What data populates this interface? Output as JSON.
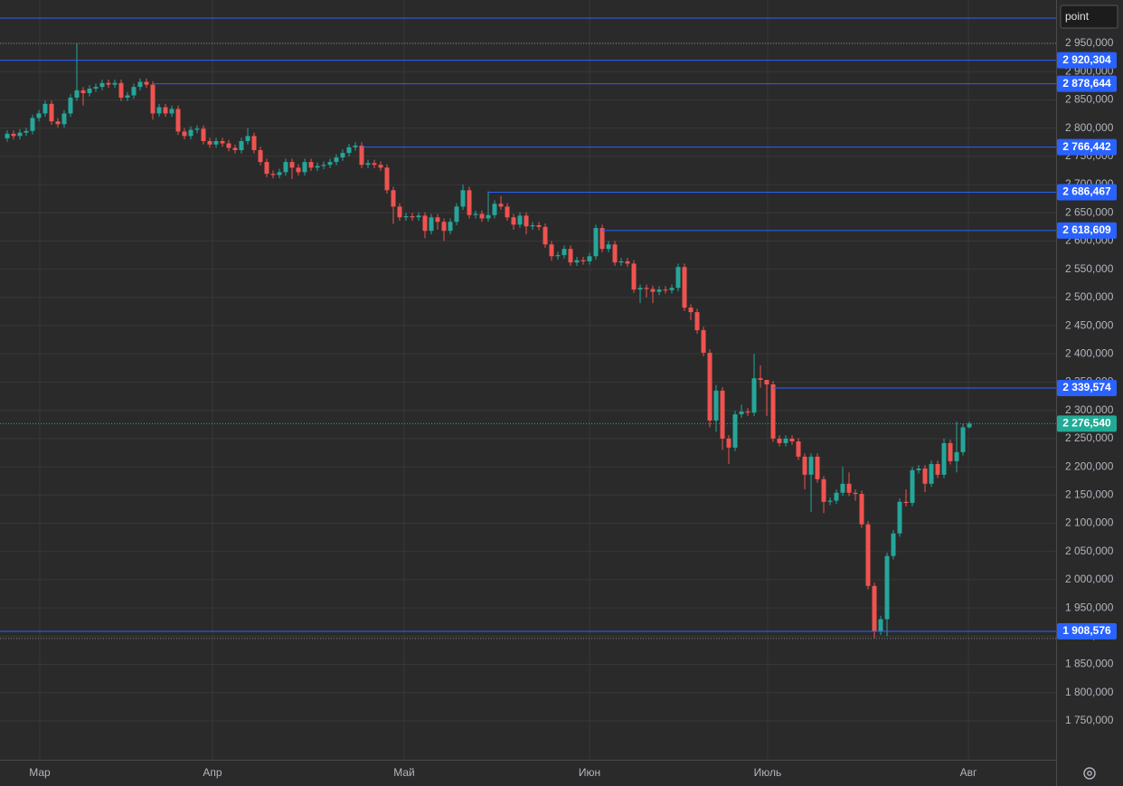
{
  "chart_data": {
    "type": "candlestick",
    "symbol": "point",
    "grid": true,
    "up_color": "#26a69a",
    "down_color": "#ef5350",
    "level_color": "#2962ff",
    "last_price_color": "#22ab94",
    "xlim": [
      -1.14,
      165.71
    ],
    "xticks": [
      {
        "value": 5.14,
        "label": "Мар"
      },
      {
        "value": 32.43,
        "label": "Апр"
      },
      {
        "value": 62.71,
        "label": "Май"
      },
      {
        "value": 92,
        "label": "Июн"
      },
      {
        "value": 120.14,
        "label": "Июль"
      },
      {
        "value": 151.86,
        "label": "Авг"
      }
    ],
    "ylim": [
      1681000,
      3027000
    ],
    "yticks": [
      {
        "value": 1750000,
        "label": "1 750,000"
      },
      {
        "value": 1800000,
        "label": "1 800,000"
      },
      {
        "value": 1850000,
        "label": "1 850,000"
      },
      {
        "value": 1900000,
        "label": "1 900,000"
      },
      {
        "value": 1950000,
        "label": "1 950,000"
      },
      {
        "value": 2000000,
        "label": "2 000,000"
      },
      {
        "value": 2050000,
        "label": "2 050,000"
      },
      {
        "value": 2100000,
        "label": "2 100,000"
      },
      {
        "value": 2150000,
        "label": "2 150,000"
      },
      {
        "value": 2200000,
        "label": "2 200,000"
      },
      {
        "value": 2250000,
        "label": "2 250,000"
      },
      {
        "value": 2300000,
        "label": "2 300,000"
      },
      {
        "value": 2350000,
        "label": "2 350,000"
      },
      {
        "value": 2400000,
        "label": "2 400,000"
      },
      {
        "value": 2450000,
        "label": "2 450,000"
      },
      {
        "value": 2500000,
        "label": "2 500,000"
      },
      {
        "value": 2550000,
        "label": "2 550,000"
      },
      {
        "value": 2600000,
        "label": "2 600,000"
      },
      {
        "value": 2650000,
        "label": "2 650,000"
      },
      {
        "value": 2700000,
        "label": "2 700,000"
      },
      {
        "value": 2750000,
        "label": "2 750,000"
      },
      {
        "value": 2800000,
        "label": "2 800,000"
      },
      {
        "value": 2850000,
        "label": "2 850,000"
      },
      {
        "value": 2900000,
        "label": "2 900,000"
      },
      {
        "value": 2950000,
        "label": "2 950,000"
      }
    ],
    "levels": [
      {
        "value": 2995000
      },
      {
        "value": 2920304,
        "label": "2 920,304"
      },
      {
        "value": 2878644,
        "label": "2 878,644"
      },
      {
        "value": 2766442,
        "label": "2 766,442"
      },
      {
        "value": 2686467,
        "label": "2 686,467"
      },
      {
        "value": 2618609,
        "label": "2 618,609"
      },
      {
        "value": 2339574,
        "label": "2 339,574"
      },
      {
        "value": 1908576,
        "label": "1 908,576"
      }
    ],
    "last_price": {
      "value": 2276540,
      "label": "2 276,540"
    },
    "open": [
      2782000,
      2790000,
      2786000,
      2792000,
      2795000,
      2818000,
      2826000,
      2843000,
      2812000,
      2807000,
      2826000,
      2854000,
      2867000,
      2862000,
      2870000,
      2873000,
      2880000,
      2877000,
      2880000,
      2854000,
      2858000,
      2873000,
      2882000,
      2877000,
      2826000,
      2837000,
      2826000,
      2834000,
      2794000,
      2786000,
      2797000,
      2799000,
      2777000,
      2771000,
      2777000,
      2773000,
      2765000,
      2761000,
      2777000,
      2786000,
      2761000,
      2740000,
      2719000,
      2717000,
      2722000,
      2740000,
      2730000,
      2722000,
      2740000,
      2730000,
      2733000,
      2735000,
      2740000,
      2748000,
      2756000,
      2766000,
      2769000,
      2735000,
      2738000,
      2735000,
      2730000,
      2690000,
      2661000,
      2642000,
      2644000,
      2642000,
      2645000,
      2618000,
      2642000,
      2634000,
      2618000,
      2634000,
      2661000,
      2690000,
      2646000,
      2648000,
      2640000,
      2646000,
      2666000,
      2661000,
      2642000,
      2629000,
      2645000,
      2626000,
      2628000,
      2625000,
      2594000,
      2573000,
      2575000,
      2586000,
      2562000,
      2566000,
      2564000,
      2573000,
      2623000,
      2586000,
      2594000,
      2562000,
      2564000,
      2560000,
      2514000,
      2517000,
      2515000,
      2510000,
      2514000,
      2513000,
      2517000,
      2554000,
      2482000,
      2474000,
      2442000,
      2402000,
      2282000,
      2335000,
      2250000,
      2234000,
      2293000,
      2298000,
      2296000,
      2357000,
      2354000,
      2346000,
      2250000,
      2242000,
      2250000,
      2245000,
      2218000,
      2186000,
      2218000,
      2178000,
      2138000,
      2140000,
      2154000,
      2170000,
      2154000,
      2152000,
      2098000,
      1989000,
      1908000,
      1930000,
      2042000,
      2082000,
      2138000,
      2136000,
      2194000,
      2197000,
      2170000,
      2205000,
      2186000,
      2242000,
      2210000,
      2226000,
      2270000
    ],
    "high": [
      2796000,
      2796000,
      2798000,
      2801000,
      2824000,
      2832000,
      2849000,
      2849000,
      2818000,
      2832000,
      2860000,
      2950000,
      2873000,
      2876000,
      2879000,
      2886000,
      2886000,
      2886000,
      2886000,
      2864000,
      2879000,
      2888000,
      2888000,
      2883000,
      2843000,
      2843000,
      2840000,
      2840000,
      2800000,
      2803000,
      2805000,
      2805000,
      2783000,
      2783000,
      2783000,
      2779000,
      2771000,
      2783000,
      2800000,
      2792000,
      2767000,
      2746000,
      2725000,
      2728000,
      2746000,
      2746000,
      2736000,
      2746000,
      2746000,
      2739000,
      2741000,
      2746000,
      2754000,
      2762000,
      2772000,
      2775000,
      2775000,
      2744000,
      2744000,
      2741000,
      2736000,
      2696000,
      2667000,
      2650000,
      2650000,
      2651000,
      2651000,
      2648000,
      2648000,
      2640000,
      2640000,
      2667000,
      2700000,
      2696000,
      2654000,
      2654000,
      2688000,
      2672000,
      2680000,
      2667000,
      2648000,
      2651000,
      2651000,
      2634000,
      2634000,
      2631000,
      2600000,
      2581000,
      2592000,
      2592000,
      2572000,
      2572000,
      2579000,
      2629000,
      2629000,
      2600000,
      2600000,
      2570000,
      2570000,
      2566000,
      2523000,
      2523000,
      2521000,
      2520000,
      2520000,
      2523000,
      2560000,
      2560000,
      2488000,
      2480000,
      2448000,
      2408000,
      2345000,
      2341000,
      2256000,
      2299000,
      2310000,
      2304000,
      2400000,
      2380000,
      2352000,
      2352000,
      2256000,
      2256000,
      2256000,
      2251000,
      2224000,
      2224000,
      2224000,
      2184000,
      2146000,
      2160000,
      2200000,
      2190000,
      2160000,
      2158000,
      2104000,
      1995000,
      1936000,
      2048000,
      2088000,
      2144000,
      2160000,
      2200000,
      2203000,
      2203000,
      2211000,
      2211000,
      2250000,
      2248000,
      2280000,
      2276000,
      2280000
    ],
    "low": [
      2776000,
      2780000,
      2780000,
      2786000,
      2789000,
      2812000,
      2820000,
      2806000,
      2801000,
      2801000,
      2820000,
      2848000,
      2840000,
      2856000,
      2864000,
      2867000,
      2871000,
      2871000,
      2848000,
      2848000,
      2852000,
      2867000,
      2871000,
      2815000,
      2820000,
      2820000,
      2820000,
      2788000,
      2780000,
      2780000,
      2791000,
      2771000,
      2765000,
      2765000,
      2767000,
      2759000,
      2755000,
      2755000,
      2771000,
      2755000,
      2734000,
      2713000,
      2711000,
      2711000,
      2716000,
      2710000,
      2716000,
      2716000,
      2724000,
      2724000,
      2727000,
      2729000,
      2734000,
      2742000,
      2750000,
      2760000,
      2729000,
      2729000,
      2729000,
      2724000,
      2684000,
      2630000,
      2636000,
      2636000,
      2636000,
      2636000,
      2605000,
      2612000,
      2620000,
      2600000,
      2612000,
      2628000,
      2655000,
      2640000,
      2640000,
      2634000,
      2634000,
      2640000,
      2655000,
      2636000,
      2620000,
      2623000,
      2612000,
      2620000,
      2619000,
      2588000,
      2565000,
      2567000,
      2569000,
      2556000,
      2556000,
      2558000,
      2558000,
      2567000,
      2580000,
      2580000,
      2556000,
      2556000,
      2554000,
      2508000,
      2490000,
      2500000,
      2490000,
      2504000,
      2507000,
      2507000,
      2511000,
      2476000,
      2460000,
      2436000,
      2396000,
      2270000,
      2262000,
      2230000,
      2205000,
      2228000,
      2287000,
      2290000,
      2290000,
      2340000,
      2290000,
      2244000,
      2236000,
      2236000,
      2239000,
      2212000,
      2160000,
      2120000,
      2172000,
      2118000,
      2132000,
      2134000,
      2148000,
      2148000,
      2140000,
      2092000,
      1983000,
      1896000,
      1902000,
      1900000,
      2036000,
      2076000,
      2130000,
      2130000,
      2188000,
      2155000,
      2164000,
      2180000,
      2180000,
      2204000,
      2190000,
      2220000,
      2268000
    ],
    "close": [
      2790000,
      2786000,
      2792000,
      2795000,
      2818000,
      2826000,
      2843000,
      2812000,
      2807000,
      2826000,
      2854000,
      2867000,
      2862000,
      2870000,
      2873000,
      2880000,
      2877000,
      2880000,
      2854000,
      2858000,
      2873000,
      2882000,
      2877000,
      2826000,
      2837000,
      2826000,
      2834000,
      2794000,
      2786000,
      2797000,
      2799000,
      2777000,
      2771000,
      2777000,
      2773000,
      2765000,
      2761000,
      2777000,
      2786000,
      2761000,
      2740000,
      2719000,
      2717000,
      2722000,
      2740000,
      2730000,
      2722000,
      2740000,
      2730000,
      2733000,
      2735000,
      2740000,
      2748000,
      2756000,
      2766000,
      2769000,
      2735000,
      2738000,
      2735000,
      2730000,
      2690000,
      2661000,
      2642000,
      2644000,
      2642000,
      2645000,
      2618000,
      2642000,
      2634000,
      2618000,
      2634000,
      2661000,
      2690000,
      2646000,
      2648000,
      2640000,
      2646000,
      2666000,
      2661000,
      2642000,
      2629000,
      2645000,
      2626000,
      2628000,
      2625000,
      2594000,
      2573000,
      2575000,
      2586000,
      2562000,
      2566000,
      2564000,
      2573000,
      2623000,
      2586000,
      2594000,
      2562000,
      2564000,
      2560000,
      2514000,
      2517000,
      2515000,
      2510000,
      2514000,
      2513000,
      2517000,
      2554000,
      2482000,
      2474000,
      2442000,
      2402000,
      2282000,
      2335000,
      2250000,
      2234000,
      2293000,
      2298000,
      2296000,
      2357000,
      2354000,
      2346000,
      2250000,
      2242000,
      2250000,
      2245000,
      2218000,
      2186000,
      2218000,
      2178000,
      2138000,
      2140000,
      2154000,
      2170000,
      2154000,
      2152000,
      2098000,
      1989000,
      1908000,
      1930000,
      2042000,
      2082000,
      2138000,
      2136000,
      2194000,
      2197000,
      2170000,
      2205000,
      2186000,
      2242000,
      2210000,
      2226000,
      2270000,
      2276540
    ]
  }
}
